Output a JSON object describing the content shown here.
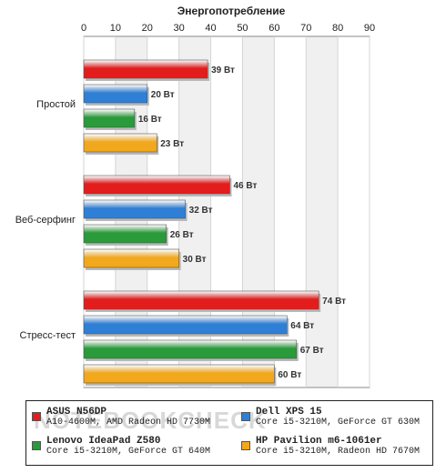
{
  "chart_data": {
    "type": "bar",
    "orientation": "horizontal",
    "title": "Энергопотребление",
    "xlim": [
      0,
      90
    ],
    "xticks": [
      0,
      10,
      20,
      30,
      40,
      50,
      60,
      70,
      80,
      90
    ],
    "grid": true,
    "categories": [
      "Простой",
      "Веб-серфинг",
      "Стресс-тест"
    ],
    "series": [
      {
        "name": "ASUS N56DP",
        "color": "#e31c1c",
        "values": [
          39,
          46,
          74
        ],
        "labels": [
          "39 Вт",
          "46 Вт",
          "74 Вт"
        ]
      },
      {
        "name": "Dell XPS 15",
        "color": "#2f7fd6",
        "values": [
          20,
          32,
          64
        ],
        "labels": [
          "20 Вт",
          "32 Вт",
          "64 Вт"
        ]
      },
      {
        "name": "Lenovo IdeaPad Z580",
        "color": "#2a9a3a",
        "values": [
          16,
          26,
          67
        ],
        "labels": [
          "16 Вт",
          "26 Вт",
          "67 Вт"
        ]
      },
      {
        "name": "HP Pavilion m6-1061er",
        "color": "#f2a81d",
        "values": [
          23,
          30,
          60
        ],
        "labels": [
          "23 Вт",
          "30 Вт",
          "60 Вт"
        ]
      }
    ],
    "legend_position": "bottom"
  },
  "legend": [
    {
      "name": "ASUS N56DP",
      "desc": "A10-4600M, AMD Radeon HD 7730M",
      "color": "#e31c1c"
    },
    {
      "name": "Dell XPS 15",
      "desc": "Core i5-3210M, GeForce GT 630M",
      "color": "#2f7fd6"
    },
    {
      "name": "Lenovo IdeaPad Z580",
      "desc": "Core i5-3210M, GeForce GT 640M",
      "color": "#2a9a3a"
    },
    {
      "name": "HP Pavilion m6-1061er",
      "desc": "Core i5-3210M, Radeon HD 7670M",
      "color": "#f2a81d"
    }
  ],
  "watermark": "NOTEBOOKCHECK"
}
